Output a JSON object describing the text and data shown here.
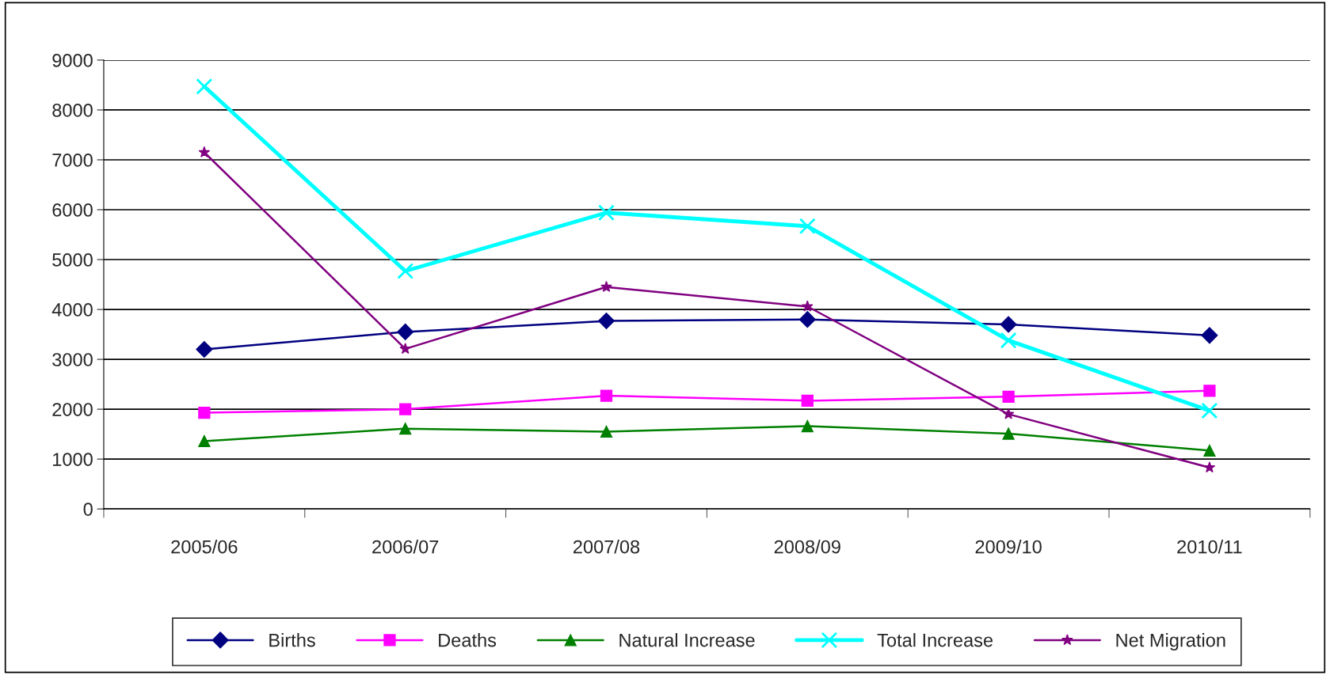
{
  "chart_data": {
    "type": "line",
    "categories": [
      "2005/06",
      "2006/07",
      "2007/08",
      "2008/09",
      "2009/10",
      "2010/11"
    ],
    "series": [
      {
        "name": "Births",
        "color": "#000080",
        "marker": "diamond",
        "values": [
          3200,
          3550,
          3770,
          3800,
          3700,
          3480
        ]
      },
      {
        "name": "Deaths",
        "color": "#ff00ff",
        "marker": "square",
        "values": [
          1930,
          2000,
          2270,
          2170,
          2250,
          2370
        ]
      },
      {
        "name": "Natural Increase",
        "color": "#008000",
        "marker": "triangle",
        "values": [
          1360,
          1610,
          1550,
          1660,
          1510,
          1170
        ]
      },
      {
        "name": "Total Increase",
        "color": "#00ffff",
        "marker": "cross",
        "values": [
          8470,
          4770,
          5940,
          5670,
          3380,
          1970
        ]
      },
      {
        "name": "Net Migration",
        "color": "#800080",
        "marker": "star",
        "values": [
          7150,
          3210,
          4450,
          4060,
          1900,
          830
        ]
      }
    ],
    "ylim": [
      0,
      9000
    ],
    "yticks": [
      0,
      1000,
      2000,
      3000,
      4000,
      5000,
      6000,
      7000,
      8000,
      9000
    ],
    "grid": "y",
    "legend": "bottom"
  }
}
